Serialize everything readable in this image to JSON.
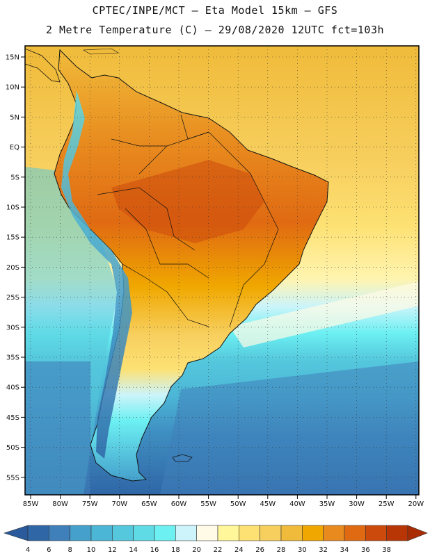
{
  "title": {
    "line1": "CPTEC/INPE/MCT –  Eta Model 15km – GFS",
    "line2": "2 Metre Temperature (C) – 29/08/2020 12UTC fct=103h"
  },
  "map": {
    "lat_labels": [
      "15N",
      "10N",
      "5N",
      "EQ",
      "5S",
      "10S",
      "15S",
      "20S",
      "25S",
      "30S",
      "35S",
      "40S",
      "45S",
      "50S",
      "55S"
    ],
    "lon_labels": [
      "85W",
      "80W",
      "75W",
      "70W",
      "65W",
      "60W",
      "55W",
      "50W",
      "45W",
      "40W",
      "35W",
      "30W",
      "25W",
      "20W"
    ]
  },
  "colorbar": {
    "ticks": [
      "4",
      "6",
      "8",
      "10",
      "12",
      "14",
      "16",
      "18",
      "20",
      "22",
      "24",
      "26",
      "28",
      "30",
      "32",
      "34",
      "36",
      "38"
    ],
    "colors": [
      "#2f66a6",
      "#3f7fba",
      "#45a0cc",
      "#4cb6d6",
      "#55c8dd",
      "#5fdbe6",
      "#6cf0f2",
      "#ccf4fa",
      "#fffbe6",
      "#fff79a",
      "#fde173",
      "#f7cf5e",
      "#f0bb3a",
      "#f0a800",
      "#e88a1e",
      "#e06a12",
      "#cc4a0c",
      "#b83606"
    ],
    "left_color": "#2a5a9c",
    "right_color": "#a92c04"
  }
}
